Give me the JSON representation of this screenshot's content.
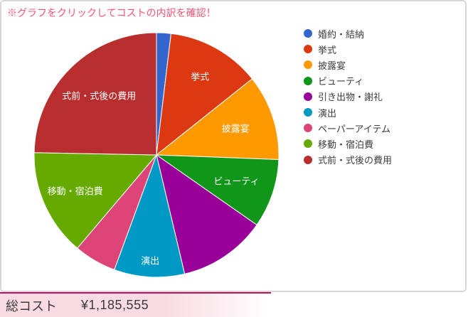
{
  "note": "※グラフをクリックしてコストの内訳を確認！",
  "theme": {
    "note_color": "#fa5376",
    "footer_line_color": "#c2105a",
    "footer_bg_color": "#f8dbe3",
    "panel_border_color": "#d6d6d6"
  },
  "footer": {
    "total_label": "総コスト",
    "total_value": "¥1,185,555"
  },
  "chart_data": {
    "type": "pie",
    "title": "",
    "legend_position": "right",
    "start_angle_deg": 0,
    "direction": "clockwise",
    "total_cost": "¥1,185,555",
    "slices": [
      {
        "label": "婚約・結納",
        "pct": 1.9,
        "color": "#3366CC",
        "in_slice_label": false
      },
      {
        "label": "挙式",
        "pct": 12.4,
        "color": "#DC3912",
        "in_slice_label": true,
        "label_radius_frac": 0.73
      },
      {
        "label": "披露宴",
        "pct": 11.3,
        "color": "#FF9900",
        "in_slice_label": true,
        "label_radius_frac": 0.68
      },
      {
        "label": "ビューティ",
        "pct": 9.1,
        "color": "#109618",
        "in_slice_label": true,
        "label_radius_frac": 0.69
      },
      {
        "label": "引き出物・謝礼",
        "pct": 11.6,
        "color": "#990099",
        "in_slice_label": false
      },
      {
        "label": "演出",
        "pct": 9.3,
        "color": "#0099C6",
        "in_slice_label": true,
        "label_radius_frac": 0.87
      },
      {
        "label": "ペーパーアイテム",
        "pct": 5.6,
        "color": "#DD4477",
        "in_slice_label": false
      },
      {
        "label": "移動・宿泊費",
        "pct": 14.1,
        "color": "#66AA00",
        "in_slice_label": true,
        "label_radius_frac": 0.73
      },
      {
        "label": "式前・式後の費用",
        "pct": 24.7,
        "color": "#B82E2E",
        "in_slice_label": true,
        "label_radius_frac": 0.67
      }
    ]
  }
}
